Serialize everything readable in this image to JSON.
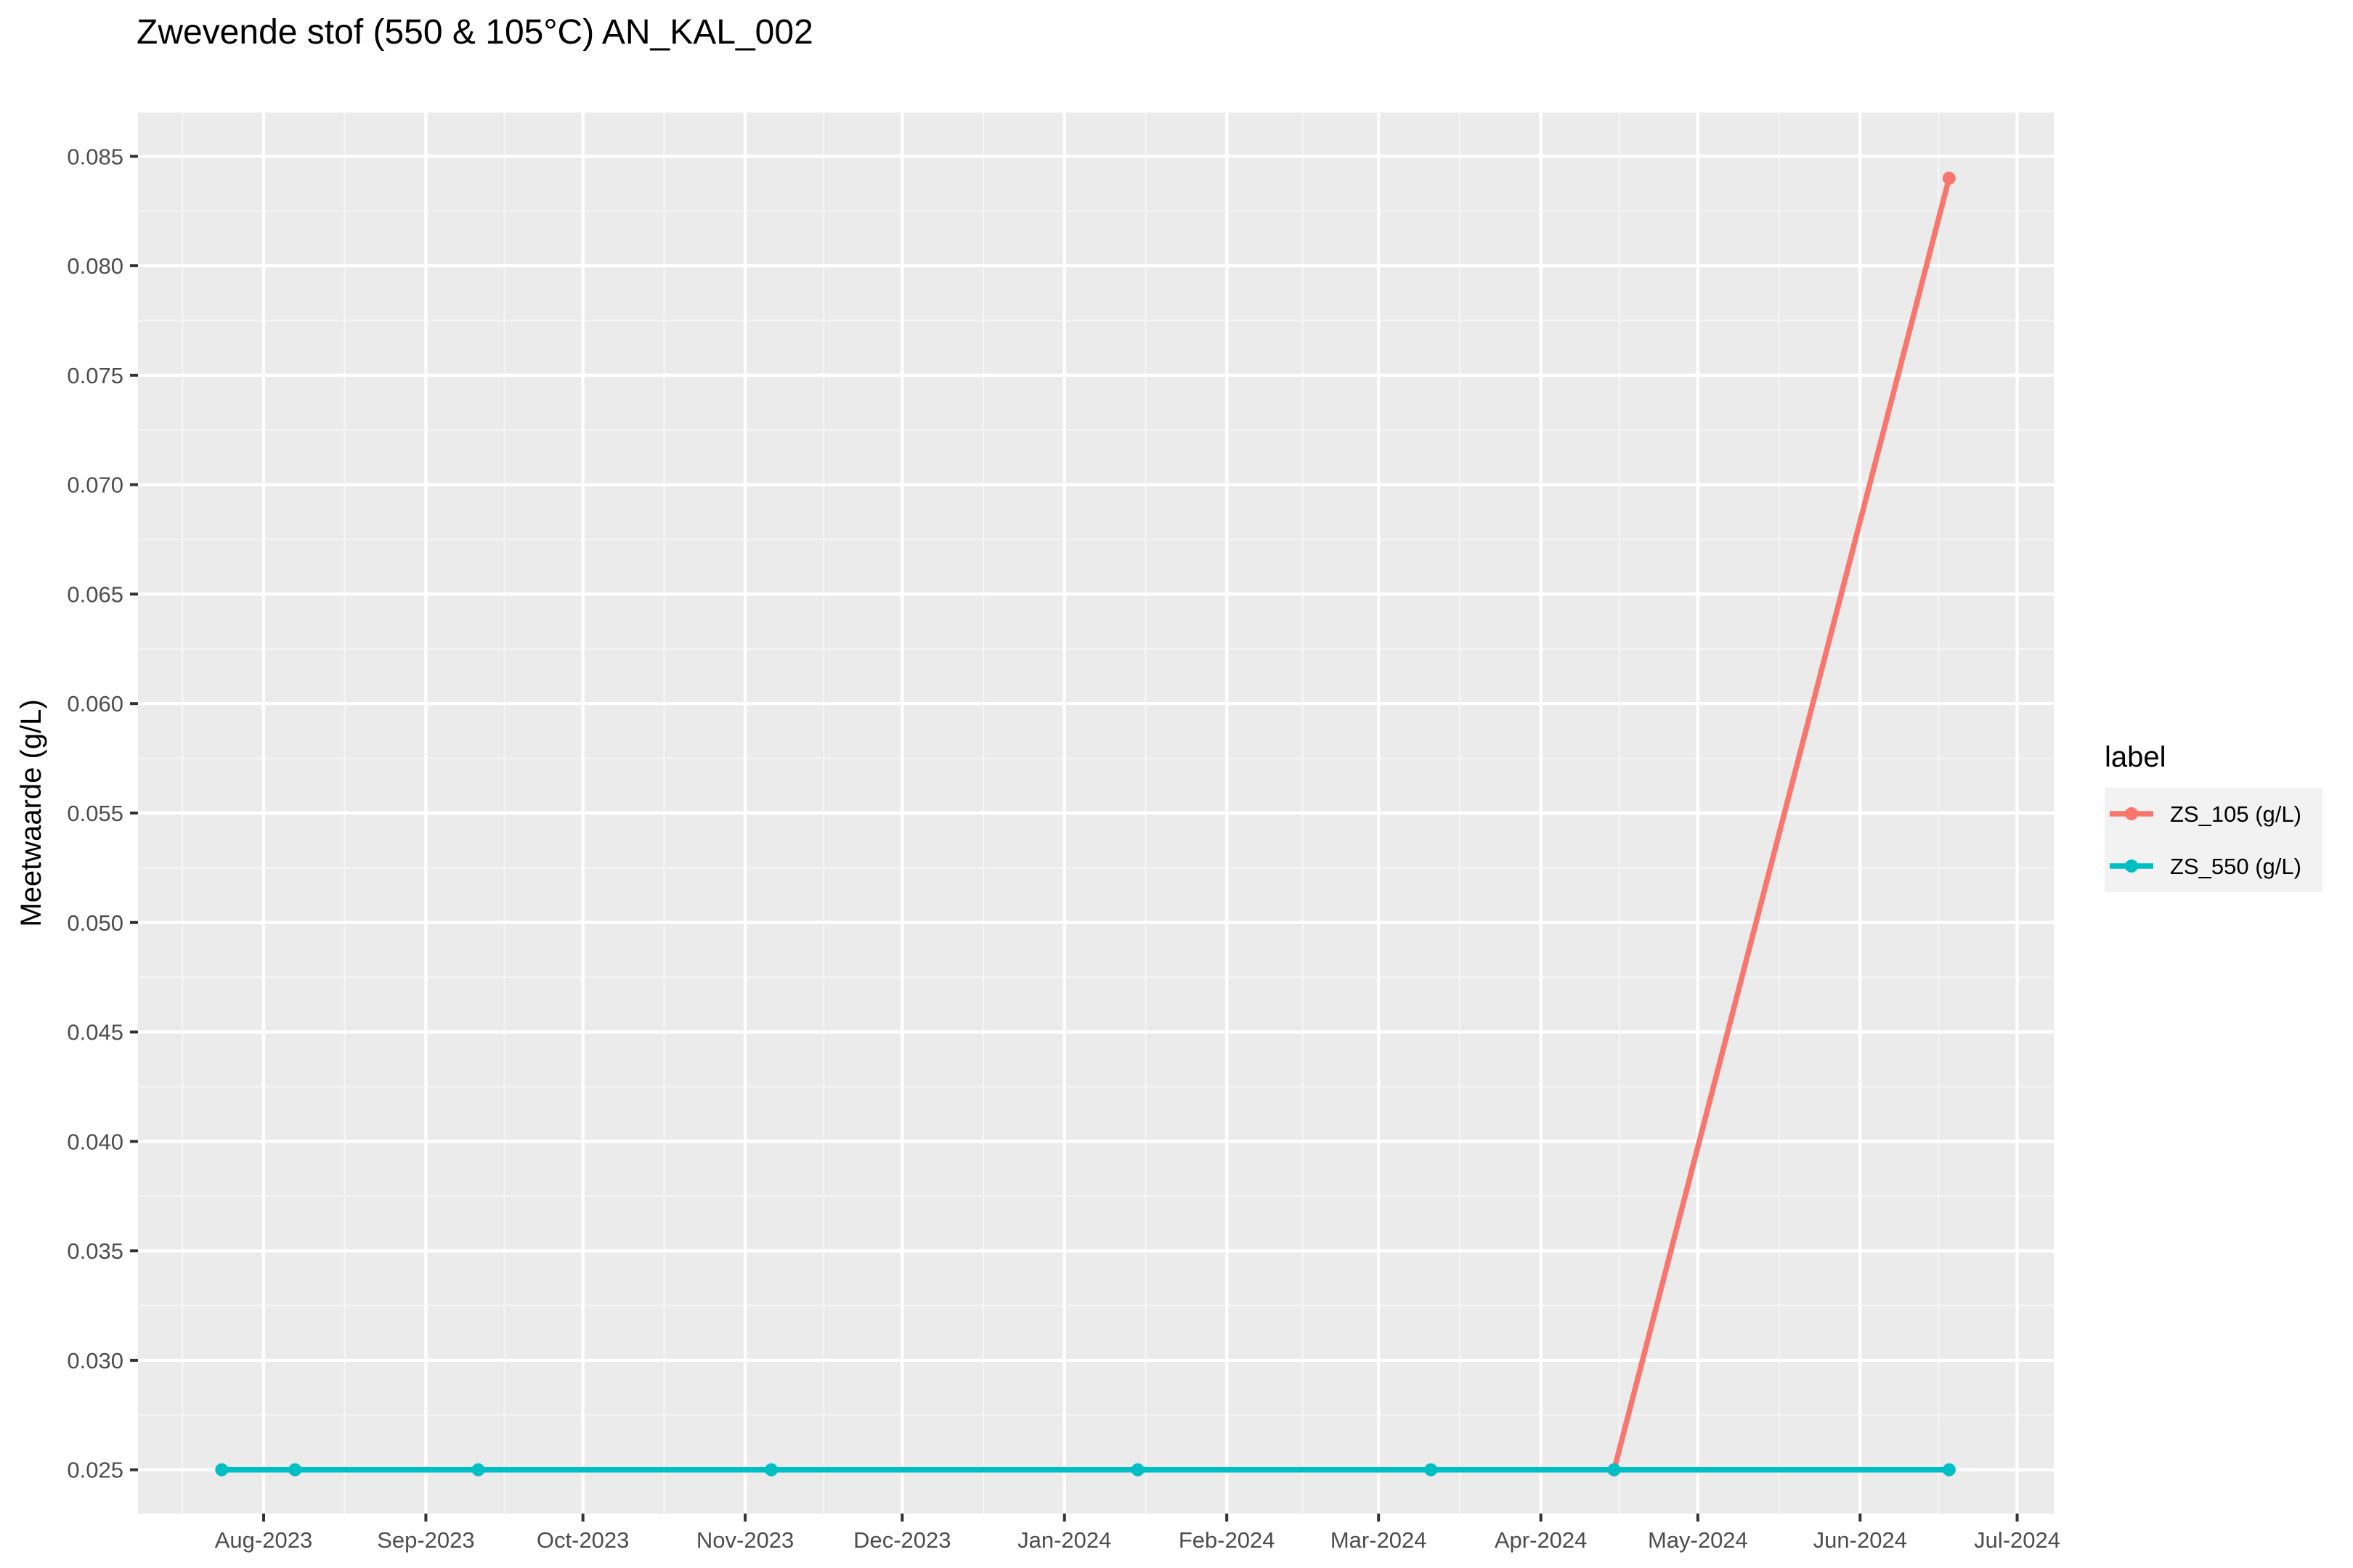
{
  "chart_data": {
    "type": "line",
    "title": "Zwevende stof (550 & 105°C) AN_KAL_002",
    "xlabel": "",
    "ylabel": "Meetwaarde (g/L)",
    "x_axis_type": "date",
    "xlim": [
      "2023-07-08",
      "2024-07-08"
    ],
    "ylim": [
      0.023,
      0.087
    ],
    "x_ticks": [
      {
        "date": "2023-08-01",
        "label": "Aug-2023"
      },
      {
        "date": "2023-09-01",
        "label": "Sep-2023"
      },
      {
        "date": "2023-10-01",
        "label": "Oct-2023"
      },
      {
        "date": "2023-11-01",
        "label": "Nov-2023"
      },
      {
        "date": "2023-12-01",
        "label": "Dec-2023"
      },
      {
        "date": "2024-01-01",
        "label": "Jan-2024"
      },
      {
        "date": "2024-02-01",
        "label": "Feb-2024"
      },
      {
        "date": "2024-03-01",
        "label": "Mar-2024"
      },
      {
        "date": "2024-04-01",
        "label": "Apr-2024"
      },
      {
        "date": "2024-05-01",
        "label": "May-2024"
      },
      {
        "date": "2024-06-01",
        "label": "Jun-2024"
      },
      {
        "date": "2024-07-01",
        "label": "Jul-2024"
      }
    ],
    "y_ticks": [
      {
        "value": 0.025,
        "label": "0.025"
      },
      {
        "value": 0.03,
        "label": "0.030"
      },
      {
        "value": 0.035,
        "label": "0.035"
      },
      {
        "value": 0.04,
        "label": "0.040"
      },
      {
        "value": 0.045,
        "label": "0.045"
      },
      {
        "value": 0.05,
        "label": "0.050"
      },
      {
        "value": 0.055,
        "label": "0.055"
      },
      {
        "value": 0.06,
        "label": "0.060"
      },
      {
        "value": 0.065,
        "label": "0.065"
      },
      {
        "value": 0.07,
        "label": "0.070"
      },
      {
        "value": 0.075,
        "label": "0.075"
      },
      {
        "value": 0.08,
        "label": "0.080"
      },
      {
        "value": 0.085,
        "label": "0.085"
      }
    ],
    "grid": true,
    "legend": {
      "title": "label",
      "position": "right"
    },
    "series": [
      {
        "name": "ZS_105 (g/L)",
        "color": "#F8766D",
        "points": [
          {
            "x": "2024-04-15",
            "y": 0.025
          },
          {
            "x": "2024-06-18",
            "y": 0.084
          }
        ]
      },
      {
        "name": "ZS_550 (g/L)",
        "color": "#00BFC4",
        "points": [
          {
            "x": "2023-07-24",
            "y": 0.025
          },
          {
            "x": "2023-08-07",
            "y": 0.025
          },
          {
            "x": "2023-09-11",
            "y": 0.025
          },
          {
            "x": "2023-11-06",
            "y": 0.025
          },
          {
            "x": "2024-01-15",
            "y": 0.025
          },
          {
            "x": "2024-03-11",
            "y": 0.025
          },
          {
            "x": "2024-04-15",
            "y": 0.025
          },
          {
            "x": "2024-06-18",
            "y": 0.025
          }
        ]
      }
    ],
    "colors": {
      "panel_background": "#EBEBEB",
      "grid_major": "#FFFFFF",
      "grid_minor": "#F5F5F5",
      "tick_label": "#4D4D4D"
    }
  }
}
